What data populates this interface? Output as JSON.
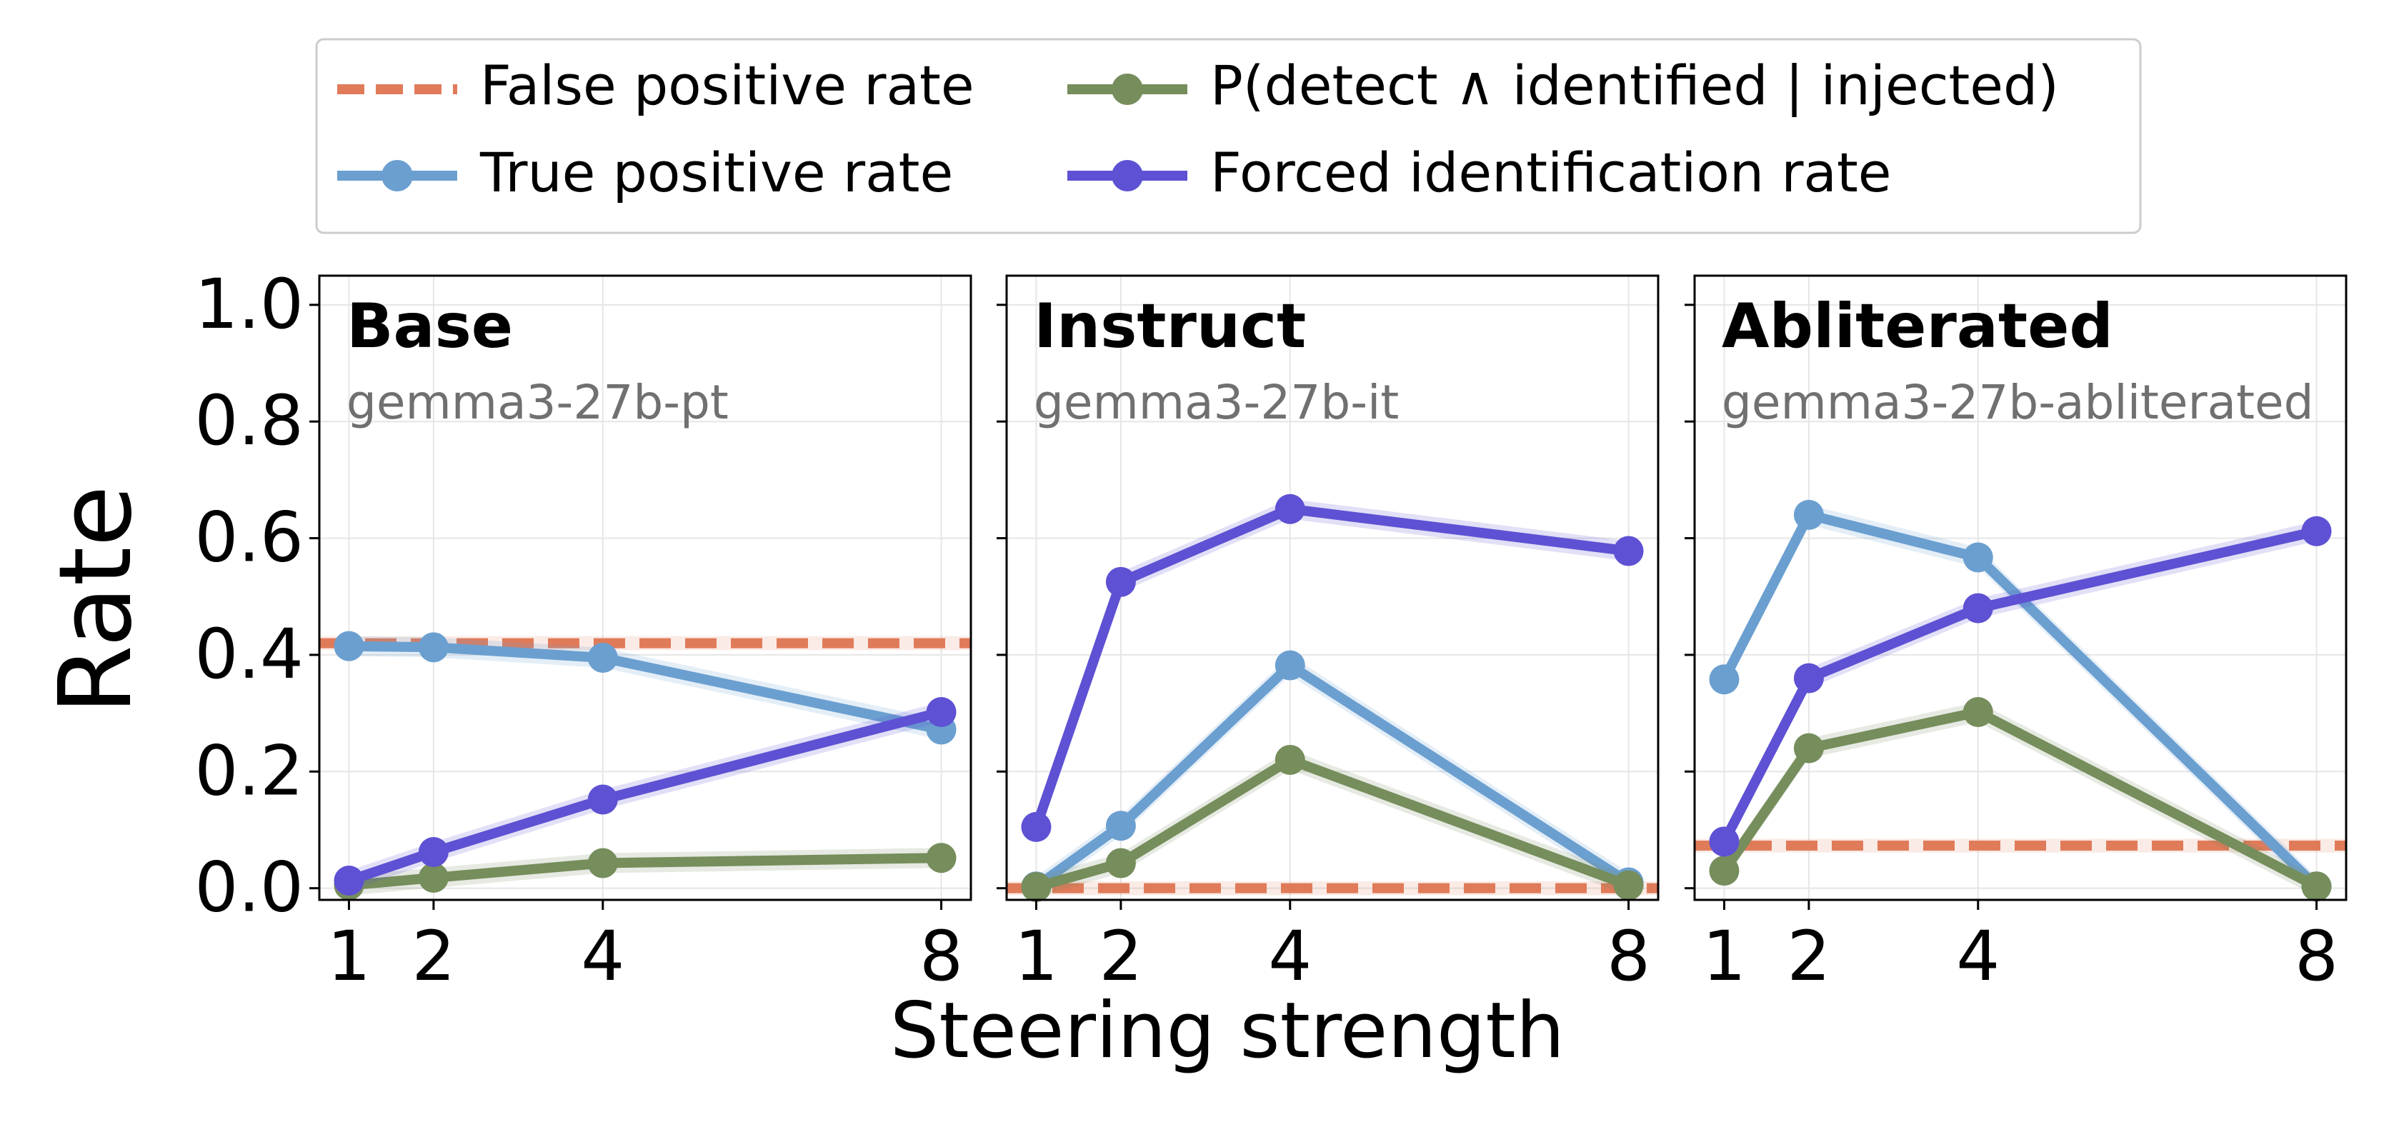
{
  "colors": {
    "fpr": "#e07b5a",
    "tpr": "#6b9fd0",
    "joint": "#768d5c",
    "forced": "#5e51d3",
    "subtitle": "#707070",
    "grid": "#e6e6e6"
  },
  "legend": {
    "fpr": "False positive rate",
    "tpr": "True positive rate",
    "joint": "P(detect ∧ identified | injected)",
    "forced": "Forced identification rate"
  },
  "ylabel": "Rate",
  "xlabel": "Steering strength",
  "x_ticks": [
    "1",
    "2",
    "4",
    "8"
  ],
  "y_ticks": [
    "0.0",
    "0.2",
    "0.4",
    "0.6",
    "0.8",
    "1.0"
  ],
  "chart_data": [
    {
      "type": "line",
      "title": "Base",
      "subtitle": "gemma3-27b-pt",
      "x": [
        1,
        2,
        4,
        8
      ],
      "xlabel": "Steering strength",
      "ylabel": "Rate",
      "ylim": [
        0,
        1.0
      ],
      "grid": true,
      "false_positive_rate": 0.42,
      "series": [
        {
          "name": "True positive rate",
          "key": "tpr",
          "values": [
            0.415,
            0.413,
            0.395,
            0.272
          ]
        },
        {
          "name": "P(detect ∧ identified | injected)",
          "key": "joint",
          "values": [
            0.005,
            0.018,
            0.043,
            0.052
          ]
        },
        {
          "name": "Forced identification rate",
          "key": "forced",
          "values": [
            0.013,
            0.062,
            0.152,
            0.302
          ]
        }
      ]
    },
    {
      "type": "line",
      "title": "Instruct",
      "subtitle": "gemma3-27b-it",
      "x": [
        1,
        2,
        4,
        8
      ],
      "xlabel": "Steering strength",
      "ylabel": "Rate",
      "ylim": [
        0,
        1.0
      ],
      "grid": true,
      "false_positive_rate": 0.0,
      "series": [
        {
          "name": "True positive rate",
          "key": "tpr",
          "values": [
            0.003,
            0.107,
            0.382,
            0.01
          ]
        },
        {
          "name": "P(detect ∧ identified | injected)",
          "key": "joint",
          "values": [
            0.002,
            0.043,
            0.22,
            0.005
          ]
        },
        {
          "name": "Forced identification rate",
          "key": "forced",
          "values": [
            0.105,
            0.525,
            0.65,
            0.578
          ]
        }
      ]
    },
    {
      "type": "line",
      "title": "Abliterated",
      "subtitle": "gemma3-27b-abliterated",
      "x": [
        1,
        2,
        4,
        8
      ],
      "xlabel": "Steering strength",
      "ylabel": "Rate",
      "ylim": [
        0,
        1.0
      ],
      "grid": true,
      "false_positive_rate": 0.073,
      "series": [
        {
          "name": "True positive rate",
          "key": "tpr",
          "values": [
            0.358,
            0.64,
            0.567,
            0.003
          ]
        },
        {
          "name": "P(detect ∧ identified | injected)",
          "key": "joint",
          "values": [
            0.03,
            0.24,
            0.302,
            0.003
          ]
        },
        {
          "name": "Forced identification rate",
          "key": "forced",
          "values": [
            0.08,
            0.36,
            0.48,
            0.612
          ]
        }
      ]
    }
  ]
}
